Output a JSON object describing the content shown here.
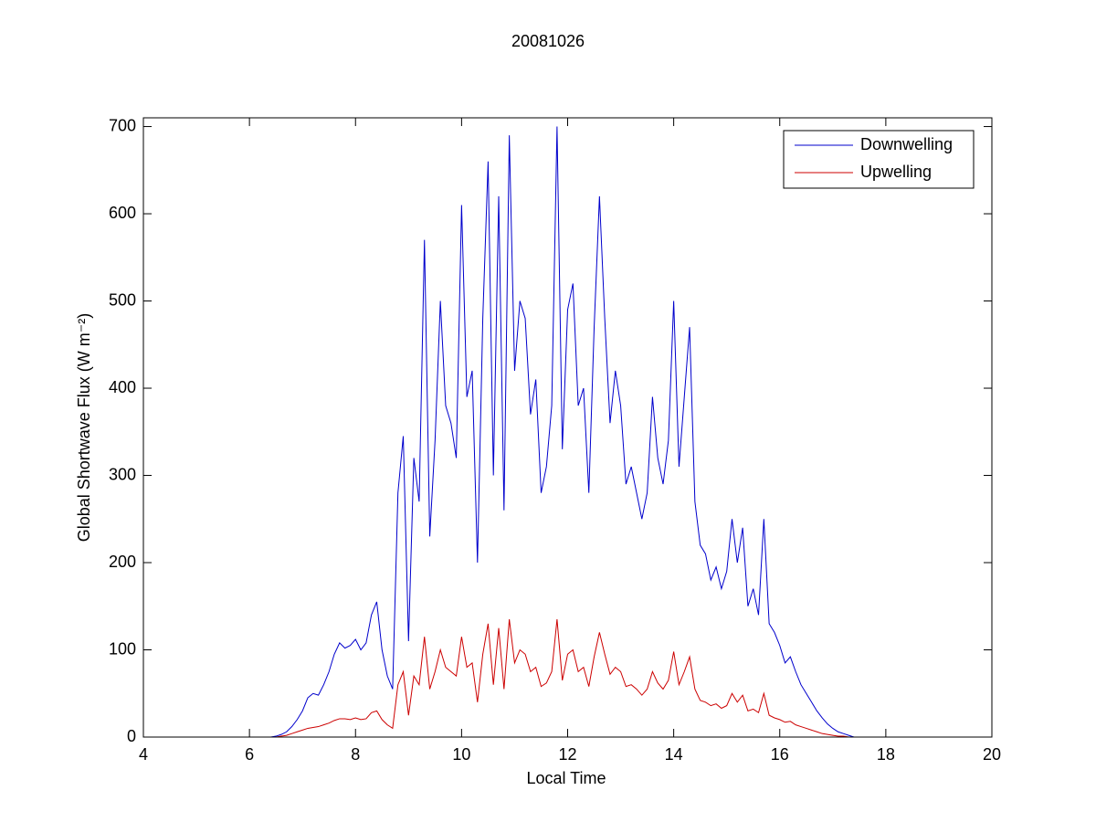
{
  "chart_data": {
    "type": "line",
    "title": "20081026",
    "x_label": "Local Time",
    "y_label": "Global Shortwave Flux (W m⁻²)",
    "x": [
      6.4,
      6.5,
      6.6,
      6.7,
      6.8,
      6.9,
      7.0,
      7.1,
      7.2,
      7.3,
      7.4,
      7.5,
      7.6,
      7.7,
      7.8,
      7.9,
      8.0,
      8.1,
      8.2,
      8.3,
      8.4,
      8.5,
      8.6,
      8.7,
      8.8,
      8.9,
      9.0,
      9.1,
      9.2,
      9.3,
      9.4,
      9.5,
      9.6,
      9.7,
      9.8,
      9.9,
      10.0,
      10.1,
      10.2,
      10.3,
      10.4,
      10.5,
      10.6,
      10.7,
      10.8,
      10.9,
      11.0,
      11.1,
      11.2,
      11.3,
      11.4,
      11.5,
      11.6,
      11.7,
      11.8,
      11.9,
      12.0,
      12.1,
      12.2,
      12.3,
      12.4,
      12.5,
      12.6,
      12.7,
      12.8,
      12.9,
      13.0,
      13.1,
      13.2,
      13.3,
      13.4,
      13.5,
      13.6,
      13.7,
      13.8,
      13.9,
      14.0,
      14.1,
      14.2,
      14.3,
      14.4,
      14.5,
      14.6,
      14.7,
      14.8,
      14.9,
      15.0,
      15.1,
      15.2,
      15.3,
      15.4,
      15.5,
      15.6,
      15.7,
      15.8,
      15.9,
      16.0,
      16.1,
      16.2,
      16.3,
      16.4,
      16.5,
      16.6,
      16.7,
      16.8,
      16.9,
      17.0,
      17.1,
      17.2,
      17.3,
      17.4
    ],
    "series": [
      {
        "name": "Downwelling",
        "color": "#0000cc",
        "values": [
          0,
          1,
          3,
          6,
          12,
          20,
          30,
          45,
          50,
          48,
          60,
          75,
          95,
          108,
          102,
          105,
          112,
          100,
          108,
          140,
          155,
          100,
          70,
          55,
          280,
          345,
          110,
          320,
          270,
          570,
          230,
          340,
          500,
          380,
          360,
          320,
          610,
          390,
          420,
          200,
          480,
          660,
          300,
          620,
          260,
          690,
          420,
          500,
          480,
          370,
          410,
          280,
          310,
          380,
          700,
          330,
          490,
          520,
          380,
          400,
          280,
          470,
          620,
          480,
          360,
          420,
          380,
          290,
          310,
          280,
          250,
          280,
          390,
          320,
          290,
          340,
          500,
          310,
          390,
          470,
          270,
          220,
          210,
          180,
          195,
          170,
          190,
          250,
          200,
          240,
          150,
          170,
          140,
          250,
          130,
          120,
          105,
          85,
          92,
          75,
          60,
          50,
          40,
          30,
          22,
          15,
          10,
          6,
          4,
          2,
          0
        ]
      },
      {
        "name": "Upwelling",
        "color": "#cc0000",
        "values": [
          0,
          0,
          1,
          2,
          4,
          6,
          8,
          10,
          11,
          12,
          14,
          16,
          19,
          21,
          21,
          20,
          22,
          20,
          21,
          28,
          30,
          20,
          14,
          10,
          60,
          75,
          25,
          70,
          60,
          115,
          55,
          75,
          100,
          80,
          75,
          70,
          115,
          80,
          85,
          40,
          95,
          130,
          60,
          125,
          55,
          135,
          85,
          100,
          95,
          75,
          80,
          58,
          62,
          75,
          135,
          65,
          95,
          100,
          75,
          80,
          58,
          92,
          120,
          95,
          72,
          80,
          75,
          58,
          60,
          55,
          48,
          55,
          75,
          62,
          55,
          65,
          98,
          60,
          75,
          92,
          55,
          42,
          40,
          36,
          38,
          33,
          36,
          50,
          40,
          48,
          30,
          32,
          28,
          50,
          25,
          22,
          20,
          17,
          18,
          14,
          12,
          10,
          8,
          6,
          4,
          3,
          2,
          1,
          1,
          0,
          0
        ]
      }
    ],
    "xlim": [
      4,
      20
    ],
    "xticks": [
      4,
      6,
      8,
      10,
      12,
      14,
      16,
      18,
      20
    ],
    "ylim": [
      0,
      710
    ],
    "yticks": [
      0,
      100,
      200,
      300,
      400,
      500,
      600,
      700
    ],
    "grid": false,
    "legend": "top-right"
  }
}
